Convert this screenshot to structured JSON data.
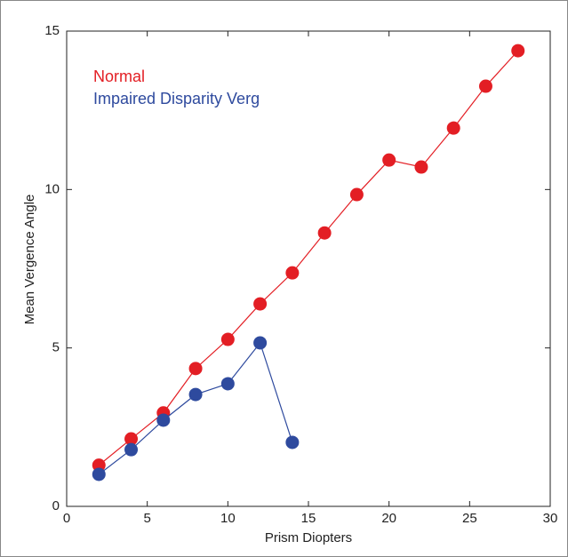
{
  "chart_data": {
    "type": "line",
    "x_label": "Prism Diopters",
    "y_label": "Mean Vergence Angle",
    "x": [
      2,
      4,
      6,
      8,
      10,
      12,
      14,
      16,
      18,
      20,
      22,
      24,
      26,
      28
    ],
    "series": [
      {
        "name": "Normal",
        "color": "#e31e24",
        "values": [
          1.3,
          2.13,
          2.95,
          4.35,
          5.27,
          6.39,
          7.37,
          8.63,
          9.84,
          10.93,
          10.71,
          11.94,
          13.26,
          14.38
        ]
      },
      {
        "name": "Impaired Disparity Verg",
        "color": "#2e4a9e",
        "values": [
          1.01,
          1.79,
          2.72,
          3.53,
          3.87,
          5.16,
          2.02,
          null,
          null,
          null,
          null,
          null,
          null,
          null
        ]
      }
    ],
    "xlim": [
      0,
      30
    ],
    "xticks": [
      0,
      5,
      10,
      15,
      20,
      25,
      30
    ],
    "ylim": [
      0,
      15
    ],
    "yticks": [
      0,
      5,
      10,
      15
    ],
    "grid": false
  }
}
